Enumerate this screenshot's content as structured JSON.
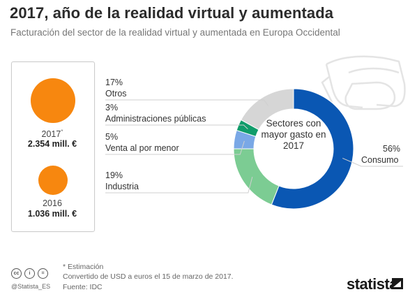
{
  "header": {
    "title": "2017, año de la realidad virtual y aumentada",
    "subtitle": "Facturación del sector de la realidad virtual y aumentada en Europa Occidental"
  },
  "revenue": {
    "y2017": {
      "year": "2017",
      "marker": "*",
      "value": "2.354 mill. €",
      "amount": 2354
    },
    "y2016": {
      "year": "2016",
      "value": "1.036 mill. €",
      "amount": 1036
    },
    "bubble_color": "#f7870f"
  },
  "chart_data": {
    "type": "pie",
    "center_label": "Sectores con mayor gasto en 2017",
    "slices": [
      {
        "label": "Consumo",
        "pct": "56%",
        "value": 56,
        "color": "#0a57b3"
      },
      {
        "label": "Industria",
        "pct": "19%",
        "value": 19,
        "color": "#7ccc93"
      },
      {
        "label": "Venta al por menor",
        "pct": "5%",
        "value": 5,
        "color": "#7aa8e6"
      },
      {
        "label": "Administraciones públicas",
        "pct": "3%",
        "value": 3,
        "color": "#109c6a"
      },
      {
        "label": "Otros",
        "pct": "17%",
        "value": 17,
        "color": "#d6d6d6"
      }
    ]
  },
  "footer": {
    "note_estimate": "* Estimación",
    "note_conversion": "Convertido de USD a euros el 15 de marzo de 2017.",
    "source": "Fuente: IDC",
    "handle": "@Statista_ES",
    "brand": "statista",
    "cc_icons": [
      "cc",
      "by",
      "="
    ]
  }
}
